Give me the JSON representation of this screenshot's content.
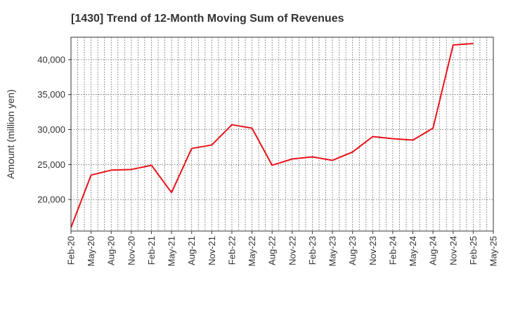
{
  "chart_data": {
    "type": "line",
    "title": "[1430]  Trend of 12-Month Moving Sum of Revenues",
    "xlabel": "",
    "ylabel": "Amount (million yen)",
    "x_tick_labels": [
      "Feb-20",
      "May-20",
      "Aug-20",
      "Nov-20",
      "Feb-21",
      "May-21",
      "Aug-21",
      "Nov-21",
      "Feb-22",
      "May-22",
      "Aug-22",
      "Nov-22",
      "Feb-23",
      "May-23",
      "Aug-23",
      "Nov-23",
      "Feb-24",
      "May-24",
      "Aug-24",
      "Nov-24",
      "Feb-25",
      "May-25"
    ],
    "y_ticks": [
      20000,
      25000,
      30000,
      35000,
      40000
    ],
    "y_tick_labels": [
      "20,000",
      "25,000",
      "30,000",
      "35,000",
      "40,000"
    ],
    "ylim": [
      15500,
      43200
    ],
    "grid": true,
    "series": [
      {
        "color": "#e8141b",
        "x": [
          "Feb-20",
          "May-20",
          "Aug-20",
          "Nov-20",
          "Feb-21",
          "May-21",
          "Aug-21",
          "Nov-21",
          "Feb-22",
          "May-22",
          "Aug-22",
          "Nov-22",
          "Feb-23",
          "May-23",
          "Aug-23",
          "Nov-23",
          "Feb-24",
          "May-24",
          "Aug-24",
          "Nov-24",
          "Feb-25"
        ],
        "values": [
          16000,
          23500,
          24200,
          24300,
          24900,
          21000,
          27300,
          27800,
          30700,
          30200,
          24900,
          25800,
          26100,
          25600,
          26800,
          29000,
          28700,
          28500,
          30200,
          42100,
          42300
        ]
      }
    ]
  }
}
